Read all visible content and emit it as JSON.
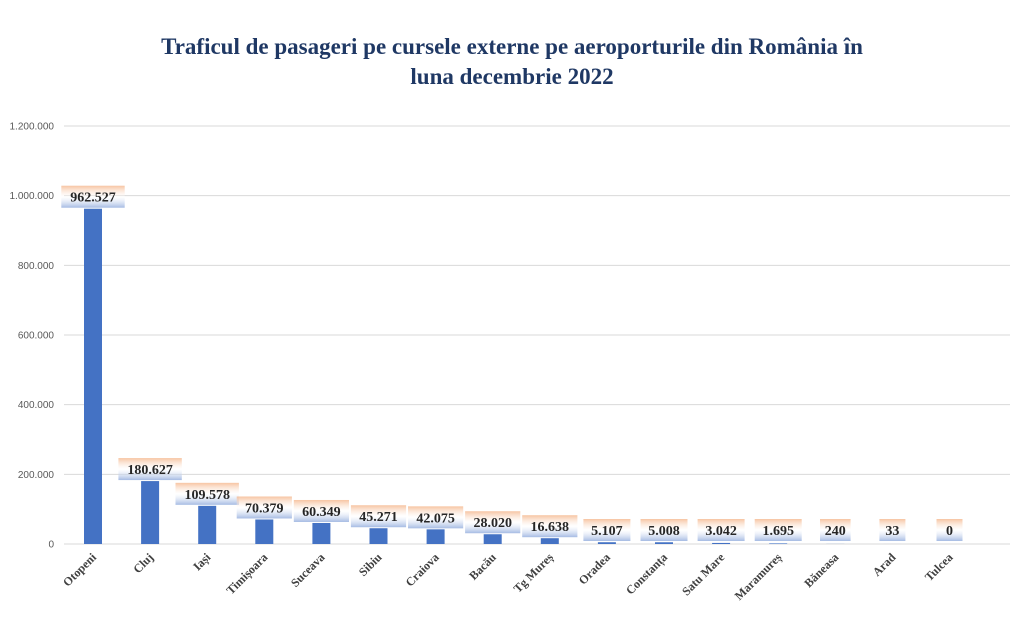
{
  "colors": {
    "bar": "#4472c4",
    "title": "#1f3864",
    "grid": "#d9d9d9",
    "label_top": "#f4b183",
    "label_bottom": "#8faadc"
  },
  "chart_data": {
    "type": "bar",
    "title_lines": [
      "Traficul de pasageri pe cursele externe pe aeroporturile din România în",
      "luna decembrie 2022"
    ],
    "categories": [
      "Otopeni",
      "Cluj",
      "Iași",
      "Timișoara",
      "Suceava",
      "Sibiu",
      "Craiova",
      "Bacău",
      "Tg Mureș",
      "Oradea",
      "Constanța",
      "Satu Mare",
      "Maramureș",
      "Băneasa",
      "Arad",
      "Tulcea"
    ],
    "values": [
      962527,
      180627,
      109578,
      70379,
      60349,
      45271,
      42075,
      28020,
      16638,
      5107,
      5008,
      3042,
      1695,
      240,
      33,
      0
    ],
    "value_labels": [
      "962.527",
      "180.627",
      "109.578",
      "70.379",
      "60.349",
      "45.271",
      "42.075",
      "28.020",
      "16.638",
      "5.107",
      "5.008",
      "3.042",
      "1.695",
      "240",
      "33",
      "0"
    ],
    "y_ticks": [
      0,
      200000,
      400000,
      600000,
      800000,
      1000000,
      1200000
    ],
    "y_tick_labels": [
      "0",
      "200.000",
      "400.000",
      "600.000",
      "800.000",
      "1.000.000",
      "1.200.000"
    ],
    "ylim": [
      0,
      1200000
    ],
    "grid": true,
    "legend": "none"
  }
}
